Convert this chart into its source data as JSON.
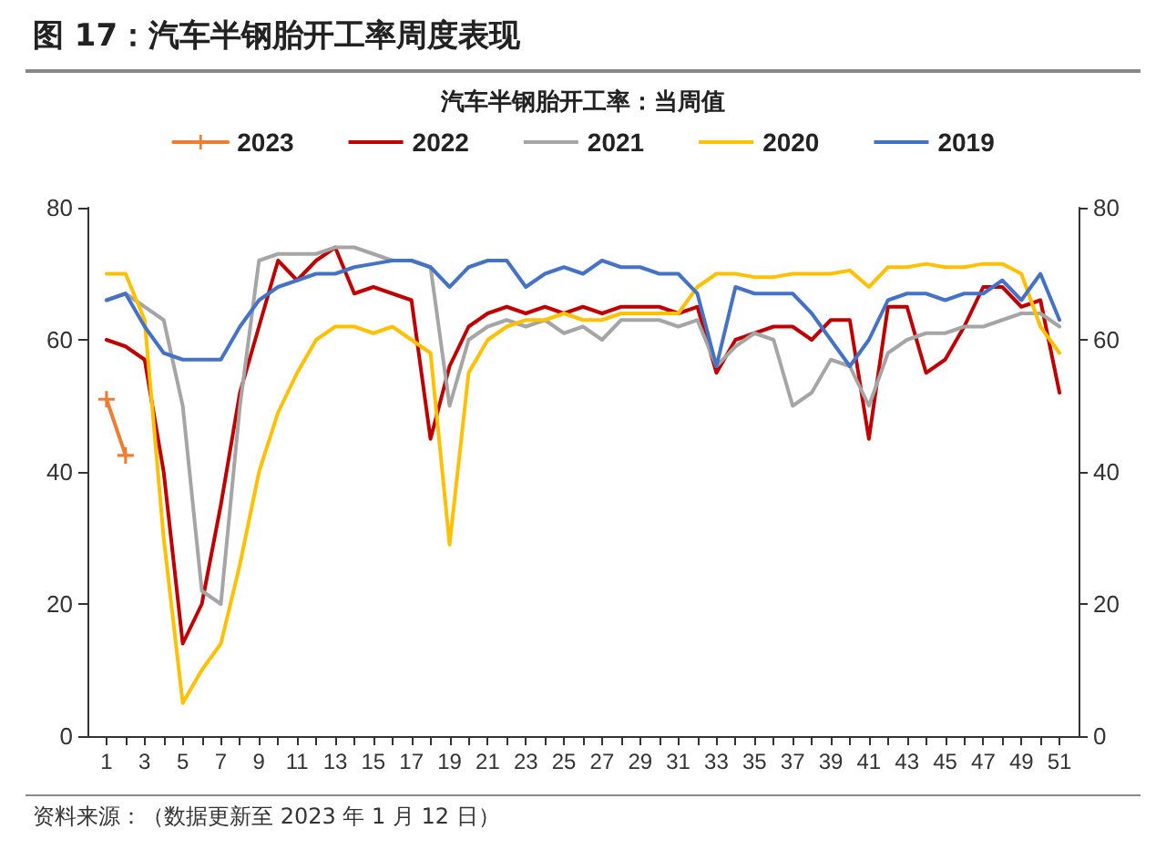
{
  "chart_data": {
    "type": "line",
    "title": "图 17：汽车半钢胎开工率周度表现",
    "subtitle": "汽车半钢胎开工率：当周值",
    "x": [
      1,
      2,
      3,
      4,
      5,
      6,
      7,
      8,
      9,
      10,
      11,
      12,
      13,
      14,
      15,
      16,
      17,
      18,
      19,
      20,
      21,
      22,
      23,
      24,
      25,
      26,
      27,
      28,
      29,
      30,
      31,
      32,
      33,
      34,
      35,
      36,
      37,
      38,
      39,
      40,
      41,
      42,
      43,
      44,
      45,
      46,
      47,
      48,
      49,
      50,
      51
    ],
    "xlim": [
      0,
      52
    ],
    "xticks": [
      1,
      {
        "value": 2,
        "label": null
      },
      3,
      {
        "value": 4,
        "label": null
      },
      5,
      {
        "value": 6,
        "label": null
      },
      7,
      {
        "value": 8,
        "label": null
      },
      9,
      {
        "value": 10,
        "label": null
      },
      11,
      {
        "value": 12,
        "label": null
      },
      13,
      {
        "value": 14,
        "label": null
      },
      15,
      {
        "value": 16,
        "label": null
      },
      17,
      {
        "value": 18,
        "label": null
      },
      19,
      {
        "value": 20,
        "label": null
      },
      21,
      {
        "value": 22,
        "label": null
      },
      23,
      {
        "value": 24,
        "label": null
      },
      25,
      {
        "value": 26,
        "label": null
      },
      27,
      {
        "value": 28,
        "label": null
      },
      29,
      {
        "value": 30,
        "label": null
      },
      31,
      {
        "value": 32,
        "label": null
      },
      33,
      {
        "value": 34,
        "label": null
      },
      35,
      {
        "value": 36,
        "label": null
      },
      37,
      {
        "value": 38,
        "label": null
      },
      39,
      {
        "value": 40,
        "label": null
      },
      41,
      {
        "value": 42,
        "label": null
      },
      43,
      {
        "value": 44,
        "label": null
      },
      45,
      {
        "value": 46,
        "label": null
      },
      47,
      {
        "value": 48,
        "label": null
      },
      49,
      {
        "value": 50,
        "label": null
      },
      51
    ],
    "series": [
      {
        "name": "2023",
        "color": "#ed7d31",
        "marker": "cross",
        "values": [
          51,
          42.5,
          null,
          null,
          null,
          null,
          null,
          null,
          null,
          null,
          null,
          null,
          null,
          null,
          null,
          null,
          null,
          null,
          null,
          null,
          null,
          null,
          null,
          null,
          null,
          null,
          null,
          null,
          null,
          null,
          null,
          null,
          null,
          null,
          null,
          null,
          null,
          null,
          null,
          null,
          null,
          null,
          null,
          null,
          null,
          null,
          null,
          null,
          null,
          null,
          null
        ]
      },
      {
        "name": "2022",
        "color": "#c00000",
        "values": [
          60,
          59,
          57,
          40,
          14,
          20,
          35,
          52,
          62,
          72,
          69,
          72,
          74,
          67,
          68,
          67,
          66,
          45,
          56,
          62,
          64,
          65,
          64,
          65,
          64,
          65,
          64,
          65,
          65,
          65,
          64,
          65,
          55,
          60,
          61,
          62,
          62,
          60,
          63,
          63,
          45,
          65,
          65,
          55,
          57,
          62,
          68,
          68,
          65,
          66,
          52
        ]
      },
      {
        "name": "2021",
        "color": "#a5a5a5",
        "values": [
          66,
          67,
          65,
          63,
          50,
          22,
          20,
          50,
          72,
          73,
          73,
          73,
          74,
          74,
          73,
          72,
          72,
          71,
          50,
          60,
          62,
          63,
          62,
          63,
          61,
          62,
          60,
          63,
          63,
          63,
          62,
          63,
          56,
          59,
          61,
          60,
          50,
          52,
          57,
          56,
          50,
          58,
          60,
          61,
          61,
          62,
          62,
          63,
          64,
          64,
          62
        ]
      },
      {
        "name": "2020",
        "color": "#ffc000",
        "values": [
          70,
          70,
          63,
          30,
          5,
          10,
          14,
          26,
          40,
          49,
          55,
          60,
          62,
          62,
          61,
          62,
          60,
          58,
          29,
          55,
          60,
          62,
          63,
          63,
          64,
          63,
          63,
          64,
          64,
          64,
          64,
          68,
          70,
          70,
          69.5,
          69.5,
          70,
          70,
          70,
          70.5,
          68,
          71,
          71,
          71.5,
          71,
          71,
          71.5,
          71.5,
          70,
          62,
          58
        ]
      },
      {
        "name": "2019",
        "color": "#4472c4",
        "values": [
          66,
          67,
          62,
          58,
          57,
          57,
          57,
          62,
          66,
          68,
          69,
          70,
          70,
          71,
          71.5,
          72,
          72,
          71,
          68,
          71,
          72,
          72,
          68,
          70,
          71,
          70,
          72,
          71,
          71,
          70,
          70,
          67,
          56,
          68,
          67,
          67,
          67,
          64,
          60,
          56,
          60,
          66,
          67,
          67,
          66,
          67,
          67,
          69,
          66,
          70,
          63
        ]
      }
    ],
    "ylim": [
      0,
      80
    ],
    "yticks": [
      0,
      20,
      40,
      60,
      80
    ],
    "y2lim": [
      0,
      80
    ],
    "y2ticks": [
      0,
      20,
      40,
      60,
      80
    ],
    "grid": false,
    "legend": "top",
    "marker": "none",
    "line_style": "solid",
    "annotations": [
      "资料来源：（数据更新至 2023 年 1 月 12 日）"
    ]
  }
}
